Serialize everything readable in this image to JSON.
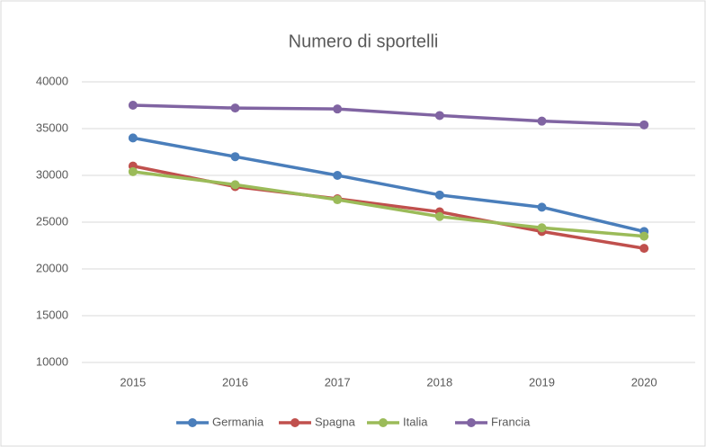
{
  "chart_data": {
    "type": "line",
    "title": "Numero di sportelli",
    "categories": [
      "2015",
      "2016",
      "2017",
      "2018",
      "2019",
      "2020"
    ],
    "series": [
      {
        "name": "Germania",
        "color": "#4a7ebb",
        "values": [
          34000,
          32000,
          30000,
          27900,
          26600,
          24000
        ]
      },
      {
        "name": "Spagna",
        "color": "#c0504d",
        "values": [
          31000,
          28800,
          27500,
          26100,
          24000,
          22200
        ]
      },
      {
        "name": "Italia",
        "color": "#9bbb59",
        "values": [
          30400,
          29000,
          27400,
          25600,
          24400,
          23500
        ]
      },
      {
        "name": "Francia",
        "color": "#8064a2",
        "values": [
          37500,
          37200,
          37100,
          36400,
          35800,
          35400
        ]
      }
    ],
    "ylim": [
      10000,
      40000
    ],
    "yticks": [
      10000,
      15000,
      20000,
      25000,
      30000,
      35000,
      40000
    ],
    "grid": true,
    "legend": "bottom"
  }
}
